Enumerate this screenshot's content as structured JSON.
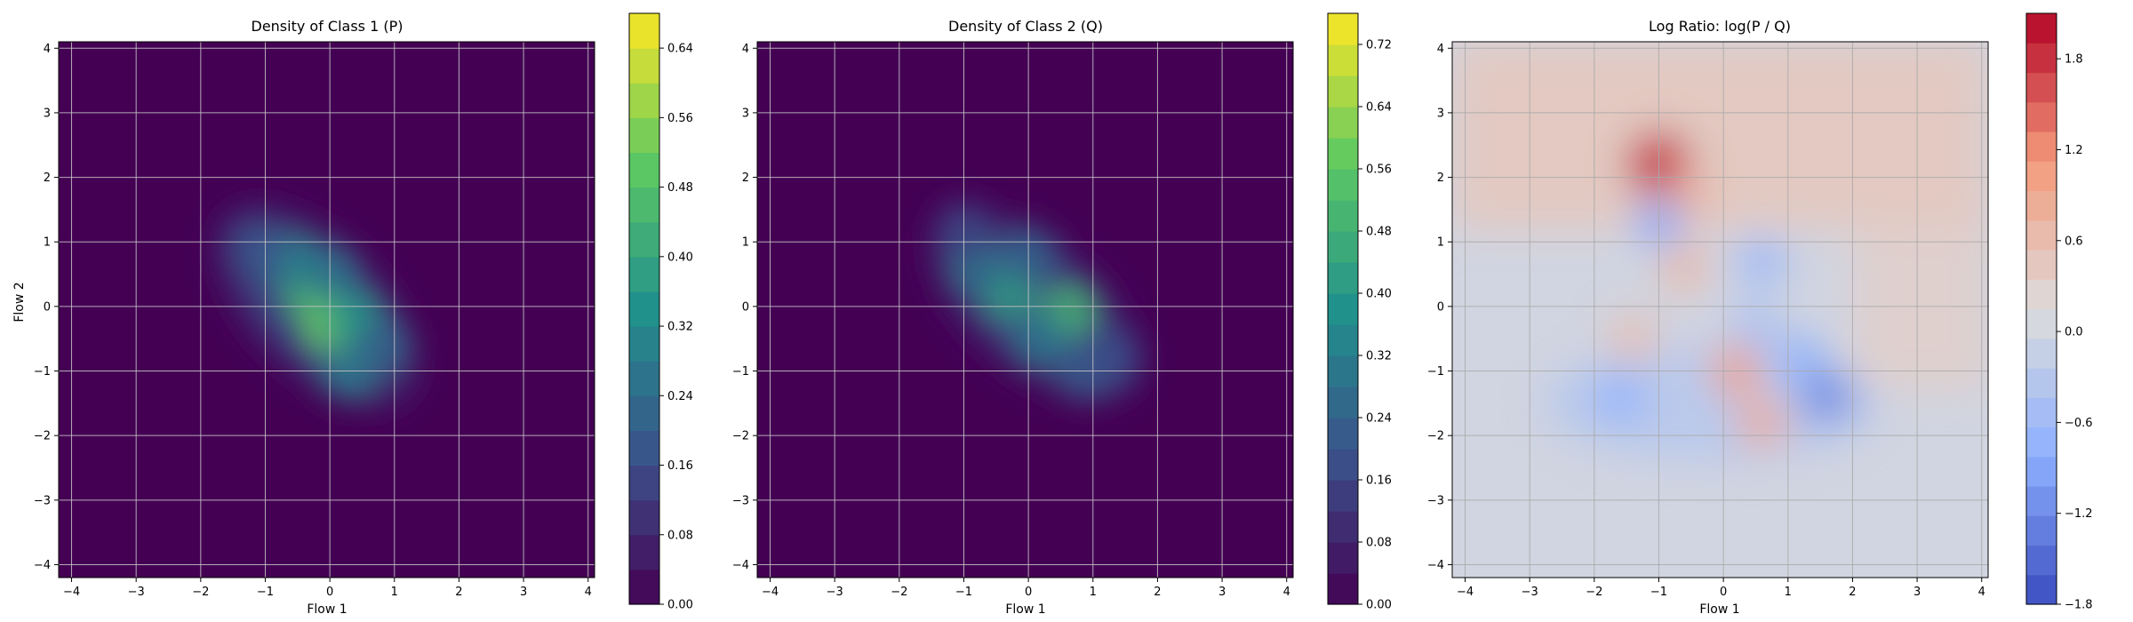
{
  "chart_data": [
    {
      "type": "heatmap",
      "title": "Density of Class 1 (P)",
      "xlabel": "Flow 1",
      "ylabel": "Flow 2",
      "xlim": [
        -4.2,
        4.1
      ],
      "ylim": [
        -4.2,
        4.1
      ],
      "xticks": [
        -4,
        -3,
        -2,
        -1,
        0,
        1,
        2,
        3,
        4
      ],
      "yticks": [
        -4,
        -3,
        -2,
        -1,
        0,
        1,
        2,
        3,
        4
      ],
      "grid": true,
      "colormap": "viridis",
      "colorbar": {
        "range": [
          0.0,
          0.68
        ],
        "ticks": [
          0.0,
          0.08,
          0.16,
          0.24,
          0.32,
          0.4,
          0.48,
          0.56,
          0.64
        ],
        "tick_labels": [
          "0.00",
          "0.08",
          "0.16",
          "0.24",
          "0.32",
          "0.40",
          "0.48",
          "0.56",
          "0.64"
        ],
        "levels": 17
      },
      "density_blobs": [
        {
          "x": -0.3,
          "y": 0.2,
          "value": 0.45
        },
        {
          "x": 0.0,
          "y": -0.3,
          "value": 0.52
        },
        {
          "x": -0.6,
          "y": 0.7,
          "value": 0.3
        },
        {
          "x": 0.4,
          "y": -0.2,
          "value": 0.35
        },
        {
          "x": 0.3,
          "y": -1.0,
          "value": 0.28
        },
        {
          "x": -1.1,
          "y": 0.9,
          "value": 0.18
        },
        {
          "x": 0.8,
          "y": -0.6,
          "value": 0.22
        },
        {
          "x": 0.0,
          "y": 0.5,
          "value": 0.26
        }
      ]
    },
    {
      "type": "heatmap",
      "title": "Density of Class 2 (Q)",
      "xlabel": "Flow 1",
      "ylabel": "",
      "xlim": [
        -4.2,
        4.1
      ],
      "ylim": [
        -4.2,
        4.1
      ],
      "xticks": [
        -4,
        -3,
        -2,
        -1,
        0,
        1,
        2,
        3,
        4
      ],
      "yticks": [
        -4,
        -3,
        -2,
        -1,
        0,
        1,
        2,
        3,
        4
      ],
      "grid": true,
      "colormap": "viridis",
      "colorbar": {
        "range": [
          0.0,
          0.76
        ],
        "ticks": [
          0.0,
          0.08,
          0.16,
          0.24,
          0.32,
          0.4,
          0.48,
          0.56,
          0.64,
          0.72
        ],
        "tick_labels": [
          "0.00",
          "0.08",
          "0.16",
          "0.24",
          "0.32",
          "0.40",
          "0.48",
          "0.56",
          "0.64",
          "0.72"
        ],
        "levels": 19
      },
      "density_blobs": [
        {
          "x": -0.3,
          "y": 0.2,
          "value": 0.42
        },
        {
          "x": 0.6,
          "y": -0.1,
          "value": 0.5
        },
        {
          "x": -0.8,
          "y": 0.6,
          "value": 0.28
        },
        {
          "x": 0.2,
          "y": -0.5,
          "value": 0.3
        },
        {
          "x": 0.9,
          "y": -1.0,
          "value": 0.22
        },
        {
          "x": -1.0,
          "y": 1.2,
          "value": 0.16
        },
        {
          "x": 1.3,
          "y": -0.8,
          "value": 0.18
        },
        {
          "x": 0.0,
          "y": 0.8,
          "value": 0.24
        }
      ]
    },
    {
      "type": "heatmap",
      "title": "Log Ratio: log(P / Q)",
      "xlabel": "Flow 1",
      "ylabel": "",
      "xlim": [
        -4.2,
        4.1
      ],
      "ylim": [
        -4.2,
        4.1
      ],
      "xticks": [
        -4,
        -3,
        -2,
        -1,
        0,
        1,
        2,
        3,
        4
      ],
      "yticks": [
        -4,
        -3,
        -2,
        -1,
        0,
        1,
        2,
        3,
        4
      ],
      "grid": true,
      "colormap": "coolwarm",
      "colorbar": {
        "range": [
          -1.8,
          2.1
        ],
        "ticks": [
          -1.8,
          -1.2,
          -0.6,
          0.0,
          0.6,
          1.2,
          1.8
        ],
        "tick_labels": [
          "−1.8",
          "−1.2",
          "−0.6",
          "0.0",
          "0.6",
          "1.2",
          "1.8"
        ],
        "levels": 20
      },
      "ratio_blobs": [
        {
          "x": -1.0,
          "y": 2.2,
          "value": 1.9
        },
        {
          "x": -0.6,
          "y": 1.7,
          "value": 0.8
        },
        {
          "x": 0.2,
          "y": -1.0,
          "value": 1.1
        },
        {
          "x": 0.6,
          "y": -1.8,
          "value": 0.9
        },
        {
          "x": -0.6,
          "y": 0.6,
          "value": 0.7
        },
        {
          "x": -1.4,
          "y": -0.5,
          "value": 0.6
        },
        {
          "x": 1.6,
          "y": -1.4,
          "value": -1.3
        },
        {
          "x": -1.6,
          "y": -1.4,
          "value": -0.8
        },
        {
          "x": -1.0,
          "y": 1.3,
          "value": -0.9
        },
        {
          "x": 0.6,
          "y": 0.7,
          "value": -0.7
        },
        {
          "x": 1.2,
          "y": -0.8,
          "value": -0.8
        },
        {
          "x": 0.5,
          "y": -0.3,
          "value": -0.5
        }
      ]
    }
  ]
}
